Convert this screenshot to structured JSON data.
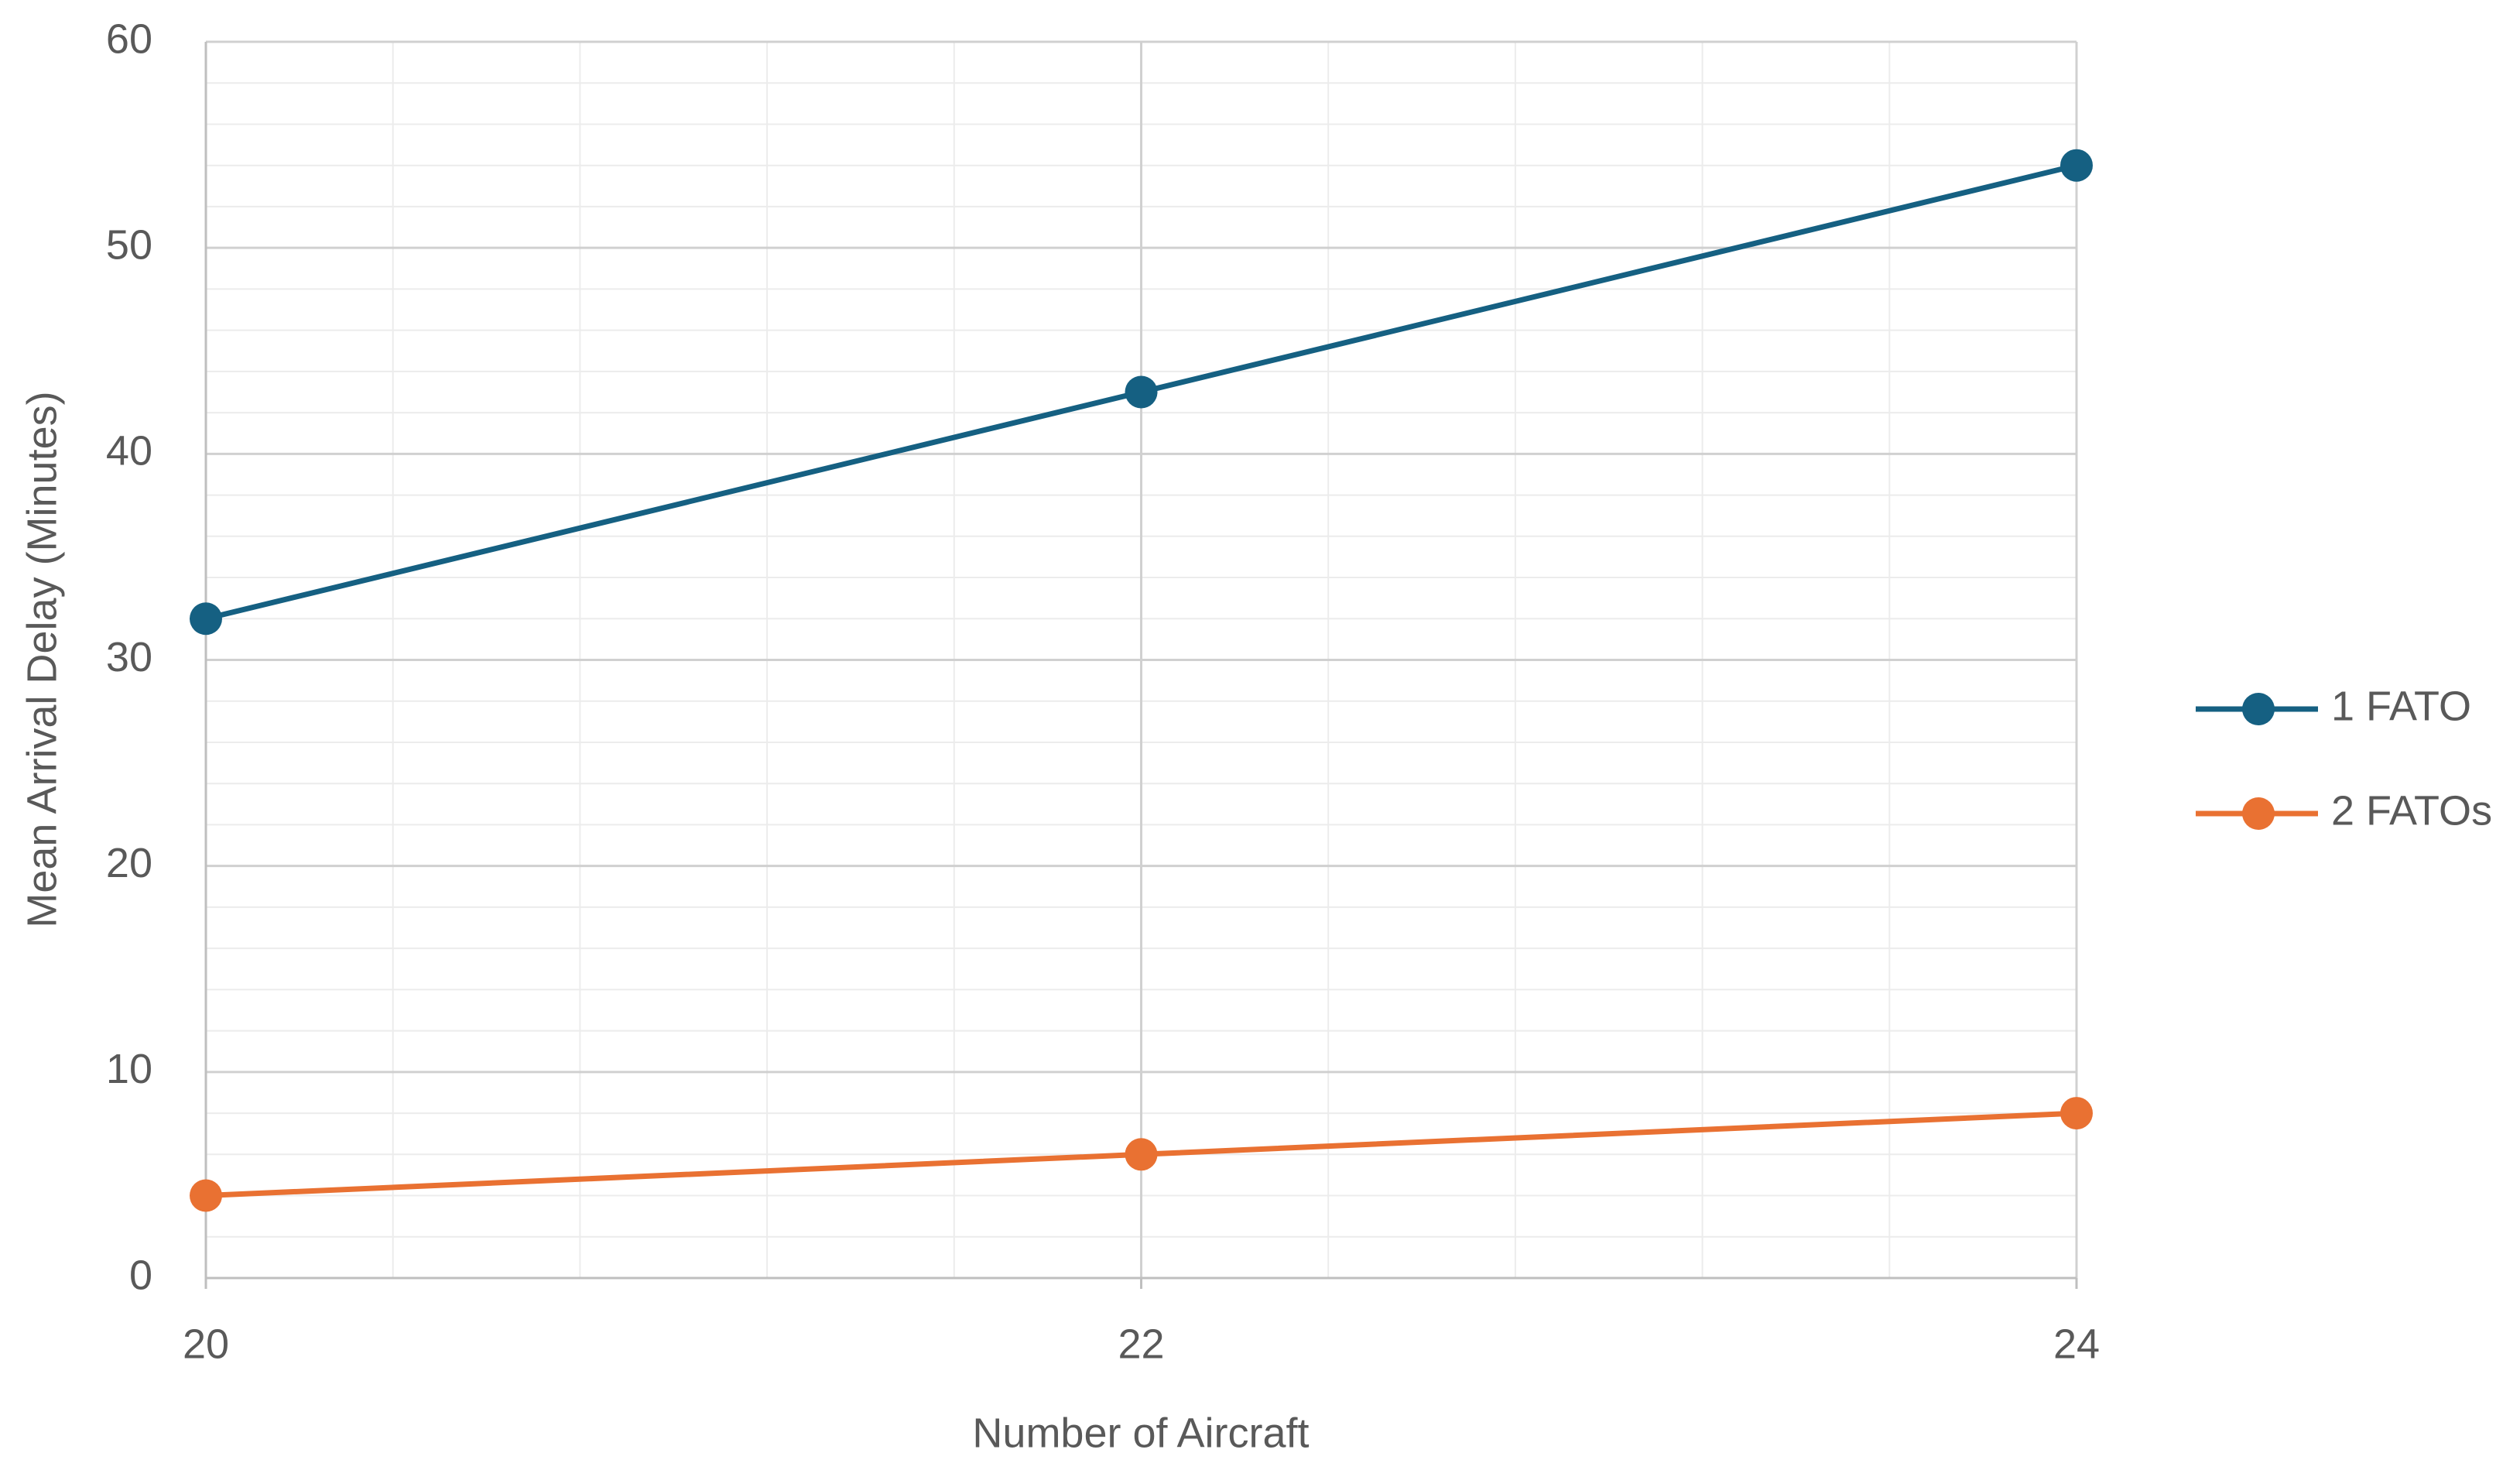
{
  "chart_data": {
    "type": "line",
    "x": [
      20,
      22,
      24
    ],
    "series": [
      {
        "name": "1 FATO",
        "color": "#156082",
        "values": [
          32,
          43,
          54
        ]
      },
      {
        "name": "2 FATOs",
        "color": "#e97132",
        "values": [
          4,
          6,
          8
        ]
      }
    ],
    "xlabel": "Number of Aircraft",
    "ylabel": "Mean Arrival Delay (Minutes)",
    "xlim": [
      20,
      24
    ],
    "xticks": [
      20,
      22,
      24
    ],
    "ylim": [
      0,
      60
    ],
    "yticks": [
      0,
      10,
      20,
      30,
      40,
      50,
      60
    ],
    "grid": true,
    "minor_grid": true,
    "legend": "right"
  }
}
